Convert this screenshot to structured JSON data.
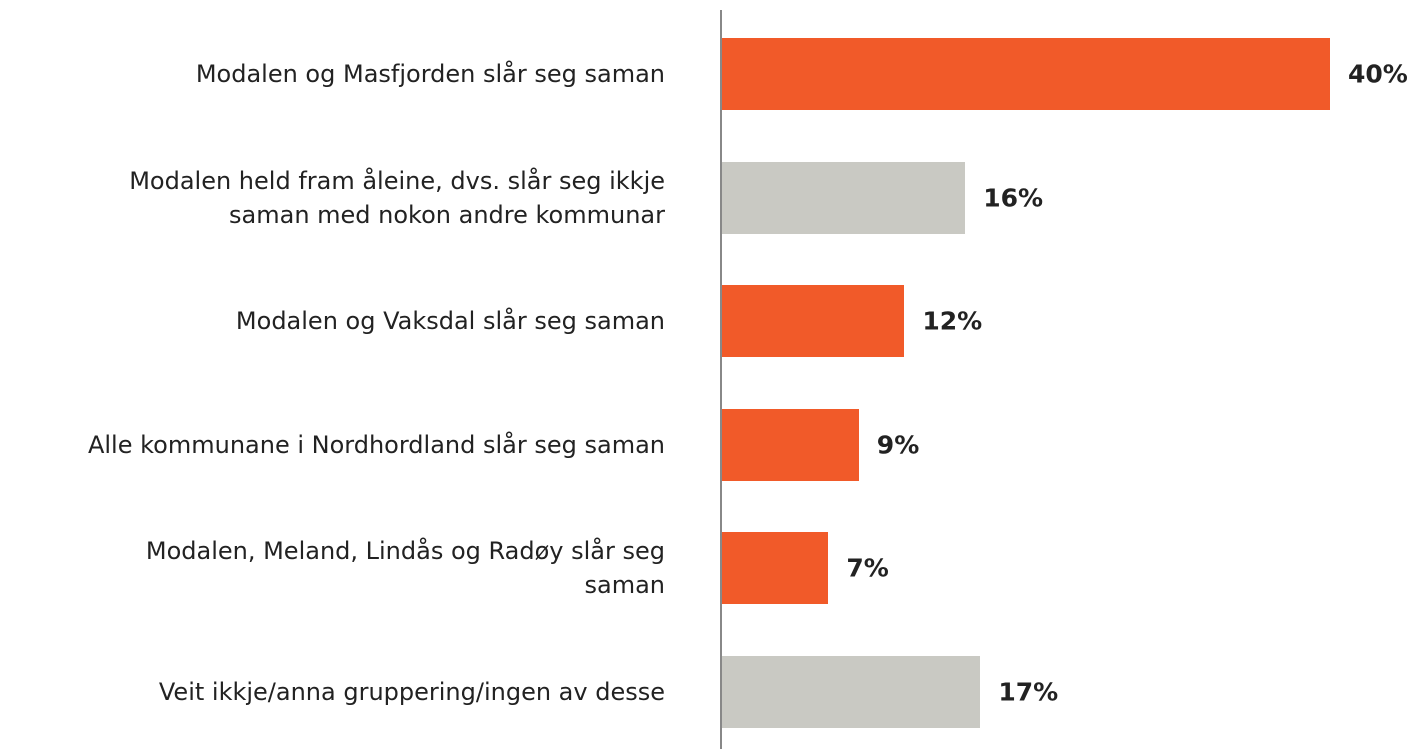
{
  "chart_data": {
    "type": "barh",
    "categories": [
      "Modalen og Masfjorden slår seg saman",
      "Modalen held fram åleine, dvs. slår seg ikkje\nsaman med nokon andre kommunar",
      "Modalen og Vaksdal slår seg saman",
      "Alle kommunane i Nordhordland slår seg saman",
      "Modalen, Meland, Lindås og Radøy slår seg\nsaman",
      "Veit ikkje/anna gruppering/ingen av desse"
    ],
    "values": [
      40,
      16,
      12,
      9,
      7,
      17
    ],
    "value_labels": [
      "40%",
      "16%",
      "12%",
      "9%",
      "7%",
      "17%"
    ],
    "colors": [
      "#f15a29",
      "#c9c9c3",
      "#f15a29",
      "#f15a29",
      "#f15a29",
      "#c9c9c3"
    ]
  }
}
